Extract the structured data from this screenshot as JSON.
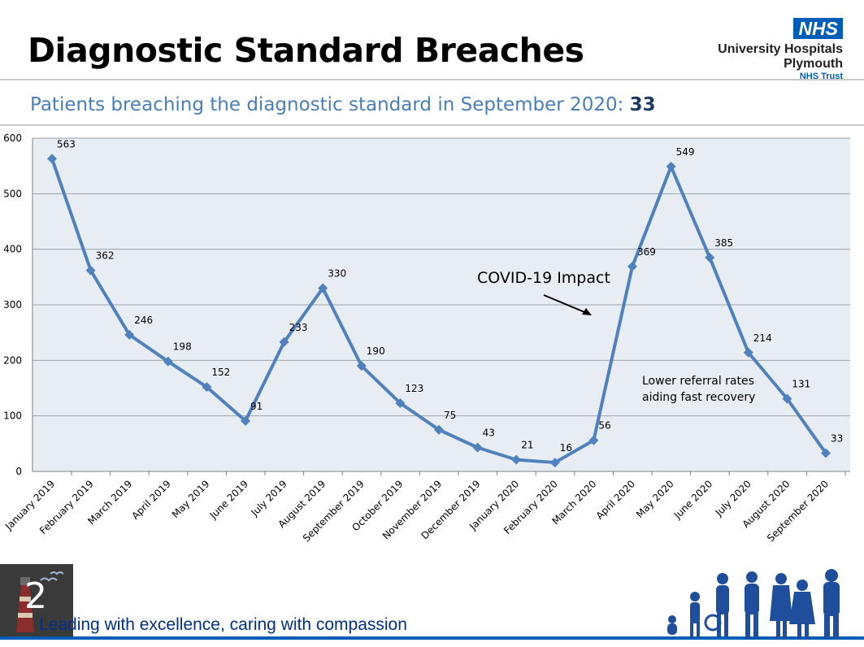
{
  "header": {
    "title": "Diagnostic Standard Breaches",
    "logo_badge": "NHS",
    "logo_org_line1": "University Hospitals",
    "logo_org_line2": "Plymouth",
    "logo_trust": "NHS Trust"
  },
  "subtitle": {
    "text": "Patients breaching the diagnostic standard in September 2020: ",
    "value": "33"
  },
  "annotations": {
    "covid": "COVID-19 Impact",
    "recovery_line1": "Lower referral rates",
    "recovery_line2": "aiding fast recovery"
  },
  "footer": {
    "page_number": "2",
    "tagline": "Leading with excellence, caring with compassion"
  },
  "colors": {
    "line": "#4f81bd",
    "plot_background": "#e8edf4",
    "brand_blue": "#005eb8"
  },
  "chart_data": {
    "type": "line",
    "title": "",
    "xlabel": "",
    "ylabel": "",
    "ylim": [
      0,
      600
    ],
    "yticks": [
      0,
      100,
      200,
      300,
      400,
      500,
      600
    ],
    "grid": true,
    "categories": [
      "January 2019",
      "February 2019",
      "March 2019",
      "April 2019",
      "May 2019",
      "June 2019",
      "July 2019",
      "August 2019",
      "September 2019",
      "October 2019",
      "November 2019",
      "December 2019",
      "January 2020",
      "February 2020",
      "March 2020",
      "April 2020",
      "May 2020",
      "June 2020",
      "July 2020",
      "August 2020",
      "September 2020"
    ],
    "values": [
      563,
      362,
      246,
      198,
      152,
      91,
      233,
      330,
      190,
      123,
      75,
      43,
      21,
      16,
      56,
      369,
      549,
      385,
      214,
      131,
      33
    ]
  }
}
